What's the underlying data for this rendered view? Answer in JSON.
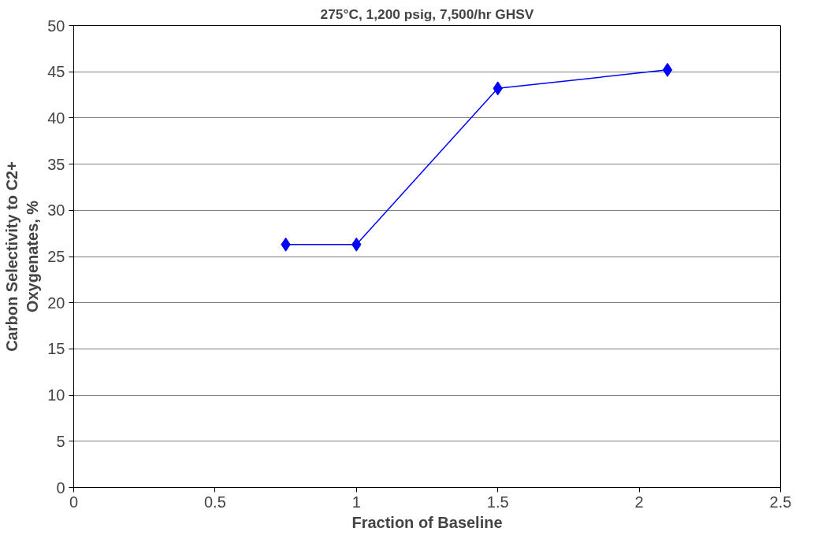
{
  "chart_data": {
    "type": "line",
    "title": "275°C, 1,200 psig, 7,500/hr GHSV",
    "xlabel": "Fraction of Baseline",
    "ylabel": "Carbon Selectivity to C2+\nOxygenates, %",
    "x": [
      0.75,
      1,
      1.5,
      2.1
    ],
    "series": [
      {
        "color": "#0000ff",
        "values": [
          26.3,
          26.3,
          43.2,
          45.2
        ]
      }
    ],
    "xlim": [
      0,
      2.5
    ],
    "xticks": [
      0,
      0.5,
      1,
      1.5,
      2,
      2.5
    ],
    "ylim": [
      0,
      50
    ],
    "yticks": [
      0,
      5,
      10,
      15,
      20,
      25,
      30,
      35,
      40,
      45,
      50
    ],
    "grid": "y",
    "marker": "diamond",
    "line_style": "solid"
  }
}
